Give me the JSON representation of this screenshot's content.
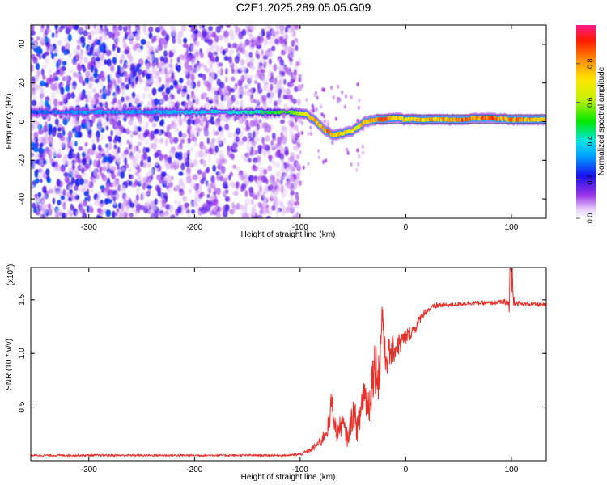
{
  "title": "C2E1.2025.289.05.05.G09",
  "colorbar": {
    "label": "Normalized spectral amplitude",
    "ticks": [
      "0.0",
      "0.2",
      "0.4",
      "0.6",
      "0.8"
    ],
    "tick_values": [
      0.0,
      0.2,
      0.4,
      0.6,
      0.8
    ],
    "range": [
      0,
      1
    ]
  },
  "chart_data": [
    {
      "type": "heatmap",
      "xlabel": "Height of straight line (km)",
      "ylabel": "Frequency (Hz)",
      "xlim": [
        -355,
        133
      ],
      "ylim": [
        -50,
        50
      ],
      "xticks": [
        -300,
        -200,
        -100,
        0,
        100
      ],
      "xtick_labels": [
        "-300",
        "-200",
        "-100",
        "0",
        "100"
      ],
      "yticks": [
        -40,
        -20,
        0,
        20,
        40
      ],
      "ytick_labels": [
        "-40",
        "-20",
        "0",
        "20",
        "40"
      ],
      "noise_region_x": [
        -355,
        -100
      ],
      "ridge": {
        "x": [
          -355,
          -300,
          -250,
          -200,
          -150,
          -110,
          -95,
          -85,
          -75,
          -68,
          -60,
          -52,
          -45,
          -38,
          -30,
          -20,
          -10,
          0,
          20,
          50,
          80,
          100,
          133
        ],
        "frequency": [
          5,
          5,
          5,
          5,
          5,
          5,
          4,
          0,
          -5,
          -7,
          -6,
          -5,
          -3,
          0,
          1,
          1,
          2,
          1,
          1,
          1,
          2,
          1,
          1
        ],
        "amplitude": [
          0.3,
          0.35,
          0.35,
          0.4,
          0.45,
          0.6,
          0.75,
          0.85,
          0.9,
          0.85,
          0.8,
          0.75,
          0.8,
          0.85,
          0.9,
          0.9,
          0.85,
          0.8,
          0.85,
          0.9,
          0.95,
          0.9,
          0.85
        ]
      }
    },
    {
      "type": "line",
      "xlabel": "Height of straight line (km)",
      "ylabel": "SNR (10 * v/v)",
      "y_multiplier": "(x10",
      "y_multiplier_exp": "4",
      "y_multiplier_close": ")",
      "xlim": [
        -355,
        133
      ],
      "ylim": [
        0,
        1.8
      ],
      "xticks": [
        -300,
        -200,
        -100,
        0,
        100
      ],
      "xtick_labels": [
        "-300",
        "-200",
        "-100",
        "0",
        "100"
      ],
      "yticks": [
        0.5,
        1.0,
        1.5
      ],
      "ytick_labels": [
        "0.5",
        "1.0",
        "1.5"
      ],
      "series": [
        {
          "color": "#e8302a",
          "x": [
            -355,
            -300,
            -250,
            -200,
            -150,
            -110,
            -100,
            -90,
            -80,
            -72,
            -70,
            -66,
            -60,
            -55,
            -50,
            -45,
            -40,
            -35,
            -30,
            -25,
            -22,
            -20,
            -15,
            -10,
            -5,
            0,
            5,
            10,
            15,
            20,
            30,
            40,
            50,
            60,
            70,
            80,
            90,
            95,
            98,
            100,
            102,
            105,
            110,
            120,
            133
          ],
          "y": [
            0.05,
            0.05,
            0.05,
            0.05,
            0.05,
            0.05,
            0.06,
            0.1,
            0.18,
            0.35,
            0.6,
            0.25,
            0.35,
            0.2,
            0.45,
            0.3,
            0.65,
            0.5,
            0.9,
            0.8,
            1.45,
            0.95,
            1.0,
            1.05,
            1.1,
            1.15,
            1.2,
            1.25,
            1.35,
            1.4,
            1.45,
            1.45,
            1.46,
            1.47,
            1.47,
            1.47,
            1.48,
            1.48,
            1.45,
            1.8,
            1.5,
            1.47,
            1.46,
            1.46,
            1.45
          ],
          "jitter": [
            0.01,
            0.01,
            0.01,
            0.01,
            0.01,
            0.01,
            0.015,
            0.02,
            0.05,
            0.1,
            0.15,
            0.1,
            0.1,
            0.08,
            0.15,
            0.15,
            0.2,
            0.2,
            0.25,
            0.25,
            0.25,
            0.2,
            0.15,
            0.12,
            0.1,
            0.08,
            0.06,
            0.05,
            0.04,
            0.03,
            0.03,
            0.02,
            0.02,
            0.02,
            0.02,
            0.02,
            0.02,
            0.03,
            0.05,
            0.2,
            0.05,
            0.03,
            0.02,
            0.02,
            0.02
          ]
        }
      ]
    }
  ]
}
